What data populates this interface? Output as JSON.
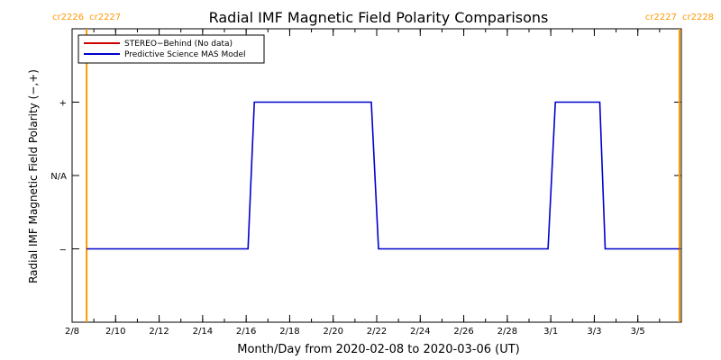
{
  "chart_data": {
    "type": "line",
    "title": "Radial IMF Magnetic Field Polarity Comparisons",
    "xlabel": "Month/Day from 2020-02-08 to 2020-03-06 (UT)",
    "ylabel": "Radial IMF Magnetic Field Polarity (−,+)",
    "xlim": [
      "2020-02-08",
      "2020-03-07"
    ],
    "ylim": [
      -2,
      2
    ],
    "x_ticks": [
      {
        "date": "2020-02-08",
        "label": "2/8"
      },
      {
        "date": "2020-02-10",
        "label": "2/10"
      },
      {
        "date": "2020-02-12",
        "label": "2/12"
      },
      {
        "date": "2020-02-14",
        "label": "2/14"
      },
      {
        "date": "2020-02-16",
        "label": "2/16"
      },
      {
        "date": "2020-02-18",
        "label": "2/18"
      },
      {
        "date": "2020-02-20",
        "label": "2/20"
      },
      {
        "date": "2020-02-22",
        "label": "2/22"
      },
      {
        "date": "2020-02-24",
        "label": "2/24"
      },
      {
        "date": "2020-02-26",
        "label": "2/26"
      },
      {
        "date": "2020-02-28",
        "label": "2/28"
      },
      {
        "date": "2020-03-01",
        "label": "3/1"
      },
      {
        "date": "2020-03-03",
        "label": "3/3"
      },
      {
        "date": "2020-03-05",
        "label": "3/5"
      }
    ],
    "y_ticks": [
      {
        "value": 1,
        "label": "+"
      },
      {
        "value": 0,
        "label": "N/A"
      },
      {
        "value": -1,
        "label": "−"
      }
    ],
    "legend": {
      "position": "top-left",
      "entries": [
        {
          "label": "STEREO−Behind (No data)",
          "color": "#cc0000"
        },
        {
          "label": "Predictive Science MAS Model",
          "color": "#0000cc"
        }
      ]
    },
    "series": [
      {
        "name": "Predictive Science MAS Model",
        "color": "#0000cc",
        "points": [
          [
            "2020-02-08T16:00",
            -1
          ],
          [
            "2020-02-16T02:00",
            -1
          ],
          [
            "2020-02-16T09:00",
            1
          ],
          [
            "2020-02-21T18:00",
            1
          ],
          [
            "2020-02-22T02:00",
            -1
          ],
          [
            "2020-02-29T21:00",
            -1
          ],
          [
            "2020-03-01T05:00",
            1
          ],
          [
            "2020-03-03T06:00",
            1
          ],
          [
            "2020-03-03T12:00",
            -1
          ],
          [
            "2020-03-06T22:00",
            -1
          ]
        ]
      }
    ],
    "carrington_markers": [
      {
        "date": "2020-02-08T16:00",
        "left_label": "cr2226",
        "right_label": "cr2227",
        "side": "left",
        "color": "#ff9900"
      },
      {
        "date": "2020-03-06T22:00",
        "left_label": "cr2227",
        "right_label": "cr2228",
        "side": "right",
        "color": "#ff9900"
      }
    ],
    "grid": false
  }
}
